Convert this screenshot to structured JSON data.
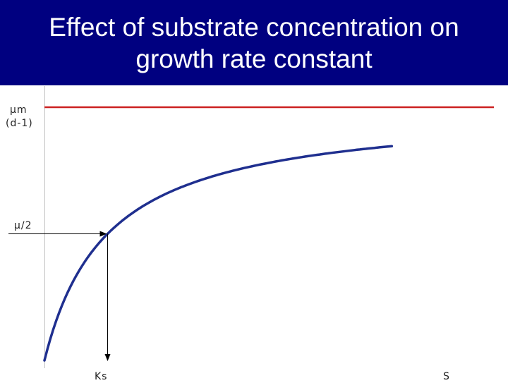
{
  "slide": {
    "title": "Effect of substrate concentration on growth rate constant"
  },
  "chart_data": {
    "type": "line",
    "title": "Effect of substrate concentration on growth rate constant",
    "xlabel": "S",
    "ylabel_line1": "µm",
    "ylabel_line2": "(d-1)",
    "half_label": "µ/2",
    "ks_label": "Ks",
    "model": "monod",
    "mu_max": 1.0,
    "ks": 1.0,
    "xlim": [
      0,
      7
    ],
    "ylim": [
      0,
      1.0
    ],
    "series": [
      {
        "x": [
          0,
          0.1,
          0.25,
          0.5,
          0.75,
          1.0,
          1.5,
          2.0,
          2.5,
          3.0,
          3.5,
          4.0,
          4.5,
          5.0,
          5.5
        ],
        "values": [
          0,
          0.09,
          0.2,
          0.333,
          0.429,
          0.5,
          0.6,
          0.667,
          0.714,
          0.75,
          0.778,
          0.8,
          0.818,
          0.833,
          0.846
        ]
      }
    ],
    "annotations": [
      {
        "type": "horizontal-line",
        "y": 1.0,
        "color": "#cc2222"
      },
      {
        "type": "arrow-from-y-axis",
        "y": 0.5,
        "x": 1.0
      },
      {
        "type": "arrow-to-x-axis",
        "x": 1.0,
        "y": 0.5
      }
    ],
    "colors": {
      "curve": "#1f2f8f",
      "max_line": "#cc2222",
      "arrows": "#000000",
      "title_band": "#000080"
    }
  }
}
